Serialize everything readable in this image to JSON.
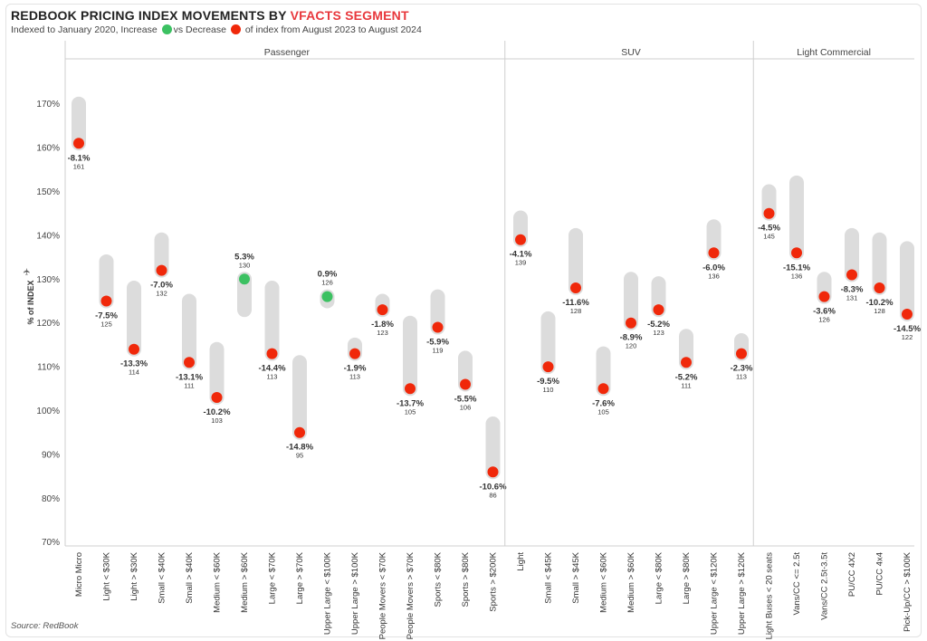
{
  "header": {
    "title_main": "REDBOOK PRICING INDEX MOVEMENTS BY ",
    "title_accent": "VFACTS SEGMENT",
    "subtitle_pre": "Indexed to January 2020, Increase",
    "subtitle_mid": "vs Decrease",
    "subtitle_post": "of index from August 2023 to August 2024"
  },
  "colors": {
    "increase": "#3cc162",
    "decrease": "#f0280a",
    "range": "#dcdcdc",
    "accent": "#e8383d"
  },
  "source": "Source: RedBook",
  "chart_data": {
    "type": "dot-range",
    "ylabel": "% of INDEX",
    "ylim": [
      68,
      175
    ],
    "yticks": [
      70,
      80,
      90,
      100,
      110,
      120,
      130,
      140,
      150,
      160,
      170
    ],
    "ytick_labels": [
      "70%",
      "80%",
      "90%",
      "100%",
      "110%",
      "120%",
      "130%",
      "140%",
      "150%",
      "160%",
      "170%"
    ],
    "segments": [
      {
        "name": "Passenger",
        "categories": [
          {
            "label": "Micro Micro",
            "start": 170,
            "end": 161,
            "change": "-8.1%",
            "index": "161"
          },
          {
            "label": "Light < $30K",
            "start": 134,
            "end": 125,
            "change": "-7.5%",
            "index": "125"
          },
          {
            "label": "Light > $30K",
            "start": 128,
            "end": 114,
            "change": "-13.3%",
            "index": "114"
          },
          {
            "label": "Small < $40K",
            "start": 139,
            "end": 132,
            "change": "-7.0%",
            "index": "132"
          },
          {
            "label": "Small > $40K",
            "start": 125,
            "end": 111,
            "change": "-13.1%",
            "index": "111"
          },
          {
            "label": "Medium < $60K",
            "start": 114,
            "end": 103,
            "change": "-10.2%",
            "index": "103"
          },
          {
            "label": "Medium > $60K",
            "start": 123,
            "end": 130,
            "change": "5.3%",
            "index": "130"
          },
          {
            "label": "Large < $70K",
            "start": 128,
            "end": 113,
            "change": "-14.4%",
            "index": "113"
          },
          {
            "label": "Large > $70K",
            "start": 111,
            "end": 95,
            "change": "-14.8%",
            "index": "95"
          },
          {
            "label": "Upper Large < $100K",
            "start": 125,
            "end": 126,
            "change": "0.9%",
            "index": "126"
          },
          {
            "label": "Upper Large > $100K",
            "start": 115,
            "end": 113,
            "change": "-1.9%",
            "index": "113"
          },
          {
            "label": "People Movers < $70K",
            "start": 125,
            "end": 123,
            "change": "-1.8%",
            "index": "123"
          },
          {
            "label": "People Movers > $70K",
            "start": 120,
            "end": 105,
            "change": "-13.7%",
            "index": "105"
          },
          {
            "label": "Sports < $80K",
            "start": 126,
            "end": 119,
            "change": "-5.9%",
            "index": "119"
          },
          {
            "label": "Sports > $80K",
            "start": 112,
            "end": 106,
            "change": "-5.5%",
            "index": "106"
          },
          {
            "label": "Sports > $200K",
            "start": 97,
            "end": 86,
            "change": "-10.6%",
            "index": "86"
          }
        ]
      },
      {
        "name": "SUV",
        "categories": [
          {
            "label": "Light",
            "start": 144,
            "end": 139,
            "change": "-4.1%",
            "index": "139"
          },
          {
            "label": "Small < $45K",
            "start": 121,
            "end": 110,
            "change": "-9.5%",
            "index": "110"
          },
          {
            "label": "Small > $45K",
            "start": 140,
            "end": 128,
            "change": "-11.6%",
            "index": "128"
          },
          {
            "label": "Medium < $60K",
            "start": 113,
            "end": 105,
            "change": "-7.6%",
            "index": "105"
          },
          {
            "label": "Medium > $60K",
            "start": 130,
            "end": 120,
            "change": "-8.9%",
            "index": "120"
          },
          {
            "label": "Large < $80K",
            "start": 129,
            "end": 123,
            "change": "-5.2%",
            "index": "123"
          },
          {
            "label": "Large > $80K",
            "start": 117,
            "end": 111,
            "change": "-5.2%",
            "index": "111"
          },
          {
            "label": "Upper Large < $120K",
            "start": 142,
            "end": 136,
            "change": "-6.0%",
            "index": "136"
          },
          {
            "label": "Upper Large > $120K",
            "start": 116,
            "end": 113,
            "change": "-2.3%",
            "index": "113"
          }
        ]
      },
      {
        "name": "Light Commercial",
        "categories": [
          {
            "label": "Light Buses < 20 seats",
            "start": 150,
            "end": 145,
            "change": "-4.5%",
            "index": "145"
          },
          {
            "label": "Vans/CC <= 2.5t",
            "start": 152,
            "end": 136,
            "change": "-15.1%",
            "index": "136"
          },
          {
            "label": "Vans/CC 2.5t-3.5t",
            "start": 130,
            "end": 126,
            "change": "-3.6%",
            "index": "126"
          },
          {
            "label": "PU/CC 4X2",
            "start": 140,
            "end": 131,
            "change": "-8.3%",
            "index": "131"
          },
          {
            "label": "PU/CC 4x4",
            "start": 139,
            "end": 128,
            "change": "-10.2%",
            "index": "128"
          },
          {
            "label": "Pick-Up/CC > $100K",
            "start": 137,
            "end": 122,
            "change": "-14.5%",
            "index": "122"
          }
        ]
      }
    ]
  }
}
